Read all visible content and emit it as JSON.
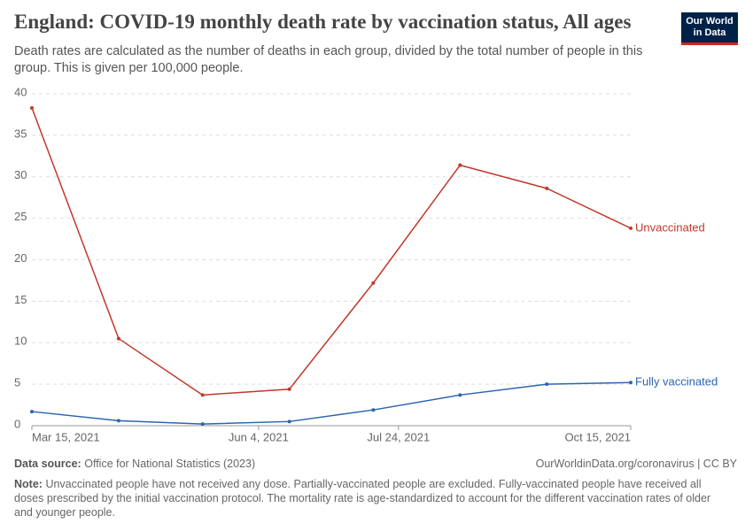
{
  "chart_data": {
    "type": "line",
    "title": "England: COVID-19 monthly death rate by vaccination status, All ages",
    "subtitle": "Death rates are calculated as the number of deaths in each group, divided by the total number of people in this group. This is given per 100,000 people.",
    "x": [
      "2021-03-15",
      "2021-04-15",
      "2021-05-15",
      "2021-06-15",
      "2021-07-15",
      "2021-08-15",
      "2021-09-15",
      "2021-10-15"
    ],
    "series": [
      {
        "name": "Unvaccinated",
        "color": "#c0392b",
        "values": [
          38.3,
          10.5,
          3.7,
          4.4,
          17.2,
          31.4,
          28.6,
          23.8
        ]
      },
      {
        "name": "Fully vaccinated",
        "color": "#2c64b0",
        "values": [
          1.7,
          0.6,
          0.2,
          0.5,
          1.9,
          3.7,
          5.0,
          5.2
        ]
      }
    ],
    "xlim": [
      "2021-03-15",
      "2021-10-15"
    ],
    "xticks": [
      {
        "value": "2021-03-15",
        "label": "Mar 15, 2021"
      },
      {
        "value": "2021-06-04",
        "label": "Jun 4, 2021"
      },
      {
        "value": "2021-07-24",
        "label": "Jul 24, 2021"
      },
      {
        "value": "2021-10-15",
        "label": "Oct 15, 2021"
      }
    ],
    "ylim": [
      0,
      40
    ],
    "yticks": [
      0,
      5,
      10,
      15,
      20,
      25,
      30,
      35,
      40
    ],
    "grid": true
  },
  "logo": [
    "Our World",
    "in Data"
  ],
  "footer": {
    "source_label": "Data source:",
    "source": "Office for National Statistics (2023)",
    "url": "OurWorldinData.org/coronavirus | CC BY",
    "note_label": "Note:",
    "note": "Unvaccinated people have not received any dose. Partially-vaccinated people are excluded. Fully-vaccinated people have received all doses prescribed by the initial vaccination protocol. The mortality rate is age-standardized to account for the different vaccination rates of older and younger people."
  }
}
